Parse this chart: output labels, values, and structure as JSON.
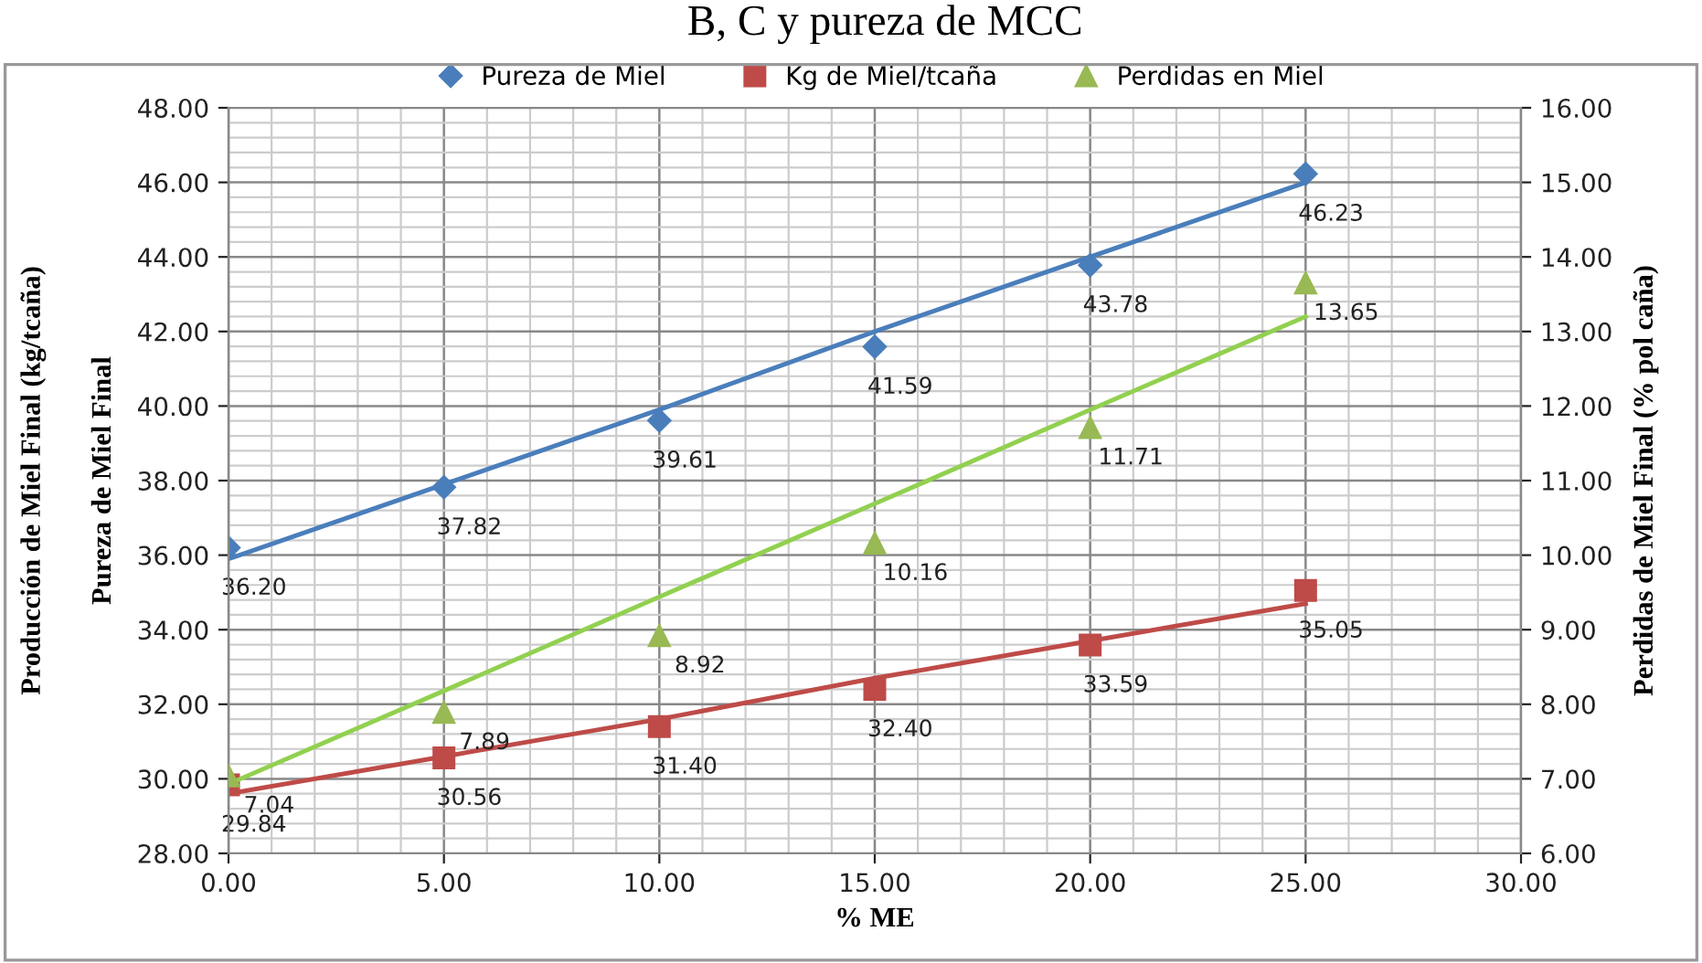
{
  "chart_data": {
    "type": "scatter",
    "title": "B, C y pureza de MCC",
    "xlabel": "% ME",
    "ylabel": "Pureza de Miel Final",
    "y2label": "Perdidas de Miel Final (% pol caña)",
    "annotations": [
      "Producción de Miel Final (kg/tcaña)"
    ],
    "x": [
      0,
      5,
      10,
      15,
      20,
      25
    ],
    "series": [
      {
        "name": "Pureza de Miel",
        "color": "#4a7ebb",
        "marker": "diamond",
        "values": [
          36.2,
          37.82,
          39.61,
          41.59,
          43.78,
          46.23
        ],
        "value_labels": [
          "36.20",
          "37.82",
          "39.61",
          "41.59",
          "43.78",
          "46.23"
        ]
      },
      {
        "name": "Kg de Miel/tcaña",
        "color": "#be4b48",
        "marker": "square",
        "values": [
          29.84,
          30.56,
          31.4,
          32.4,
          33.59,
          35.05
        ],
        "value_labels": [
          "29.84",
          "30.56",
          "31.40",
          "32.40",
          "33.59",
          "35.05"
        ]
      },
      {
        "name": "Perdidas en Miel",
        "color": "#98b954",
        "marker": "triangle",
        "axis": "y2",
        "values": [
          7.04,
          7.89,
          8.92,
          10.16,
          11.71,
          13.65
        ],
        "value_labels": [
          "7.04",
          "7.89",
          "8.92",
          "10.16",
          "11.71",
          "13.65"
        ]
      },
      {
        "type": "line",
        "color": "#4a7ebb",
        "values": [
          35.9,
          37.9,
          39.9,
          42.0,
          44.0,
          46.0
        ]
      },
      {
        "type": "line",
        "color": "#be4b48",
        "values": [
          29.6,
          30.6,
          31.6,
          32.7,
          33.7,
          34.7
        ]
      },
      {
        "type": "line",
        "color": "#92d050",
        "axis": "y2",
        "values": [
          6.93,
          8.18,
          9.44,
          10.69,
          11.95,
          13.2
        ]
      }
    ],
    "xlim": [
      0,
      30
    ],
    "xticks": [
      {
        "value": 0,
        "label": "0.00"
      },
      {
        "value": 5,
        "label": "5.00"
      },
      {
        "value": 10,
        "label": "10.00"
      },
      {
        "value": 15,
        "label": "15.00"
      },
      {
        "value": 20,
        "label": "20.00"
      },
      {
        "value": 25,
        "label": "25.00"
      },
      {
        "value": 30,
        "label": "30.00"
      }
    ],
    "ylim": [
      28,
      48
    ],
    "yticks": [
      {
        "value": 28,
        "label": "28.00"
      },
      {
        "value": 30,
        "label": "30.00"
      },
      {
        "value": 32,
        "label": "32.00"
      },
      {
        "value": 34,
        "label": "34.00"
      },
      {
        "value": 36,
        "label": "36.00"
      },
      {
        "value": 38,
        "label": "38.00"
      },
      {
        "value": 40,
        "label": "40.00"
      },
      {
        "value": 42,
        "label": "42.00"
      },
      {
        "value": 44,
        "label": "44.00"
      },
      {
        "value": 46,
        "label": "46.00"
      },
      {
        "value": 48,
        "label": "48.00"
      }
    ],
    "y2lim": [
      6,
      16
    ],
    "y2ticks": [
      {
        "value": 6,
        "label": "6.00"
      },
      {
        "value": 7,
        "label": "7.00"
      },
      {
        "value": 8,
        "label": "8.00"
      },
      {
        "value": 9,
        "label": "9.00"
      },
      {
        "value": 10,
        "label": "10.00"
      },
      {
        "value": 11,
        "label": "11.00"
      },
      {
        "value": 12,
        "label": "12.00"
      },
      {
        "value": 13,
        "label": "13.00"
      },
      {
        "value": 14,
        "label": "14.00"
      },
      {
        "value": 15,
        "label": "15.00"
      },
      {
        "value": 16,
        "label": "16.00"
      }
    ],
    "grid": true,
    "legend": "top"
  }
}
